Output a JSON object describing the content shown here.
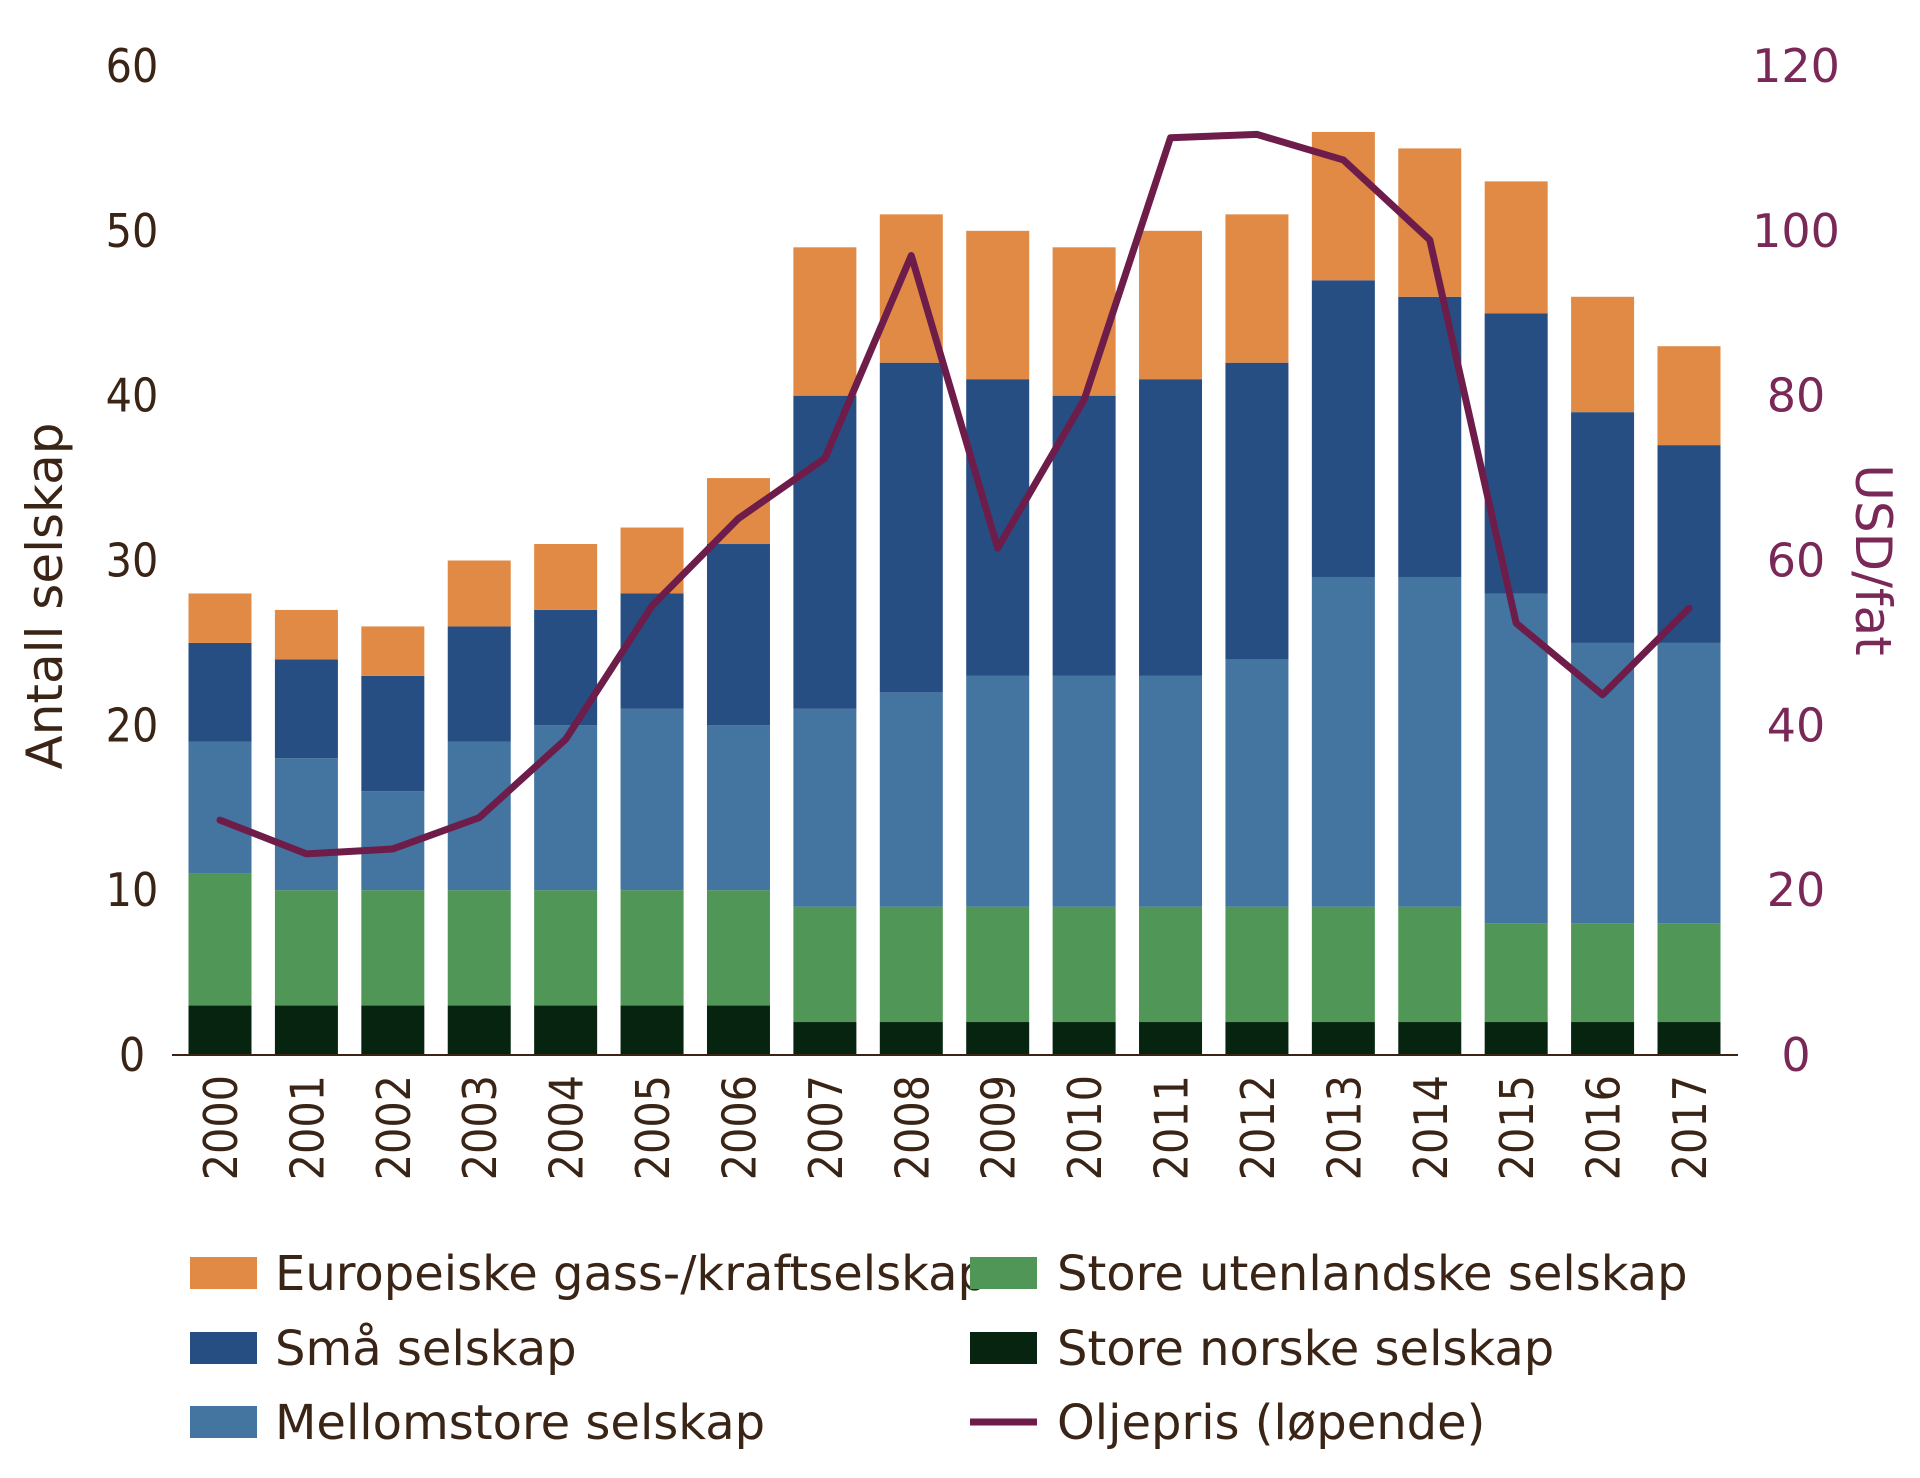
{
  "chart_data": {
    "type": "bar",
    "stacked": true,
    "categories": [
      "2000",
      "2001",
      "2002",
      "2003",
      "2004",
      "2005",
      "2006",
      "2007",
      "2008",
      "2009",
      "2010",
      "2011",
      "2012",
      "2013",
      "2014",
      "2015",
      "2016",
      "2017"
    ],
    "series": [
      {
        "name": "Store norske selskap",
        "color": "#06240f",
        "values": [
          3,
          3,
          3,
          3,
          3,
          3,
          3,
          2,
          2,
          2,
          2,
          2,
          2,
          2,
          2,
          2,
          2,
          2
        ]
      },
      {
        "name": "Store utenlandske selskap",
        "color": "#4f9657",
        "values": [
          8,
          7,
          7,
          7,
          7,
          7,
          7,
          7,
          7,
          7,
          7,
          7,
          7,
          7,
          7,
          6,
          6,
          6
        ]
      },
      {
        "name": "Mellomstore selskap",
        "color": "#4474a0",
        "values": [
          8,
          8,
          6,
          9,
          10,
          11,
          10,
          12,
          13,
          14,
          14,
          14,
          15,
          20,
          20,
          20,
          17,
          17
        ]
      },
      {
        "name": "Små selskap",
        "color": "#264e83",
        "values": [
          6,
          6,
          7,
          7,
          7,
          7,
          11,
          19,
          20,
          18,
          17,
          18,
          18,
          18,
          17,
          17,
          14,
          12
        ]
      },
      {
        "name": "Europeiske gass-/kraftselskap",
        "color": "#e08a45",
        "values": [
          3,
          3,
          3,
          4,
          4,
          4,
          4,
          9,
          9,
          9,
          9,
          9,
          9,
          9,
          9,
          8,
          7,
          6
        ]
      }
    ],
    "line": {
      "name": "Oljepris (løpende)",
      "color": "#6e1d4b",
      "axis": "right",
      "values": [
        28.5,
        24.4,
        25.0,
        28.8,
        38.3,
        54.5,
        65.1,
        72.4,
        97.0,
        61.5,
        79.5,
        111.3,
        111.7,
        108.6,
        98.9,
        52.4,
        43.7,
        54.2
      ]
    },
    "yaxis_left": {
      "label": "Antall selskap",
      "min": 0,
      "max": 60,
      "ticks": [
        "0",
        "10",
        "20",
        "30",
        "40",
        "50",
        "60"
      ]
    },
    "yaxis_right": {
      "label": "USD/fat",
      "min": 0,
      "max": 120,
      "ticks": [
        "0",
        "20",
        "40",
        "60",
        "80",
        "100",
        "120"
      ]
    },
    "legend": {
      "placement": "bottom",
      "left_column": [
        "Europeiske gass-/kraftselskap",
        "Små selskap",
        "Mellomstore selskap"
      ],
      "right_column": [
        "Store utenlandske selskap",
        "Store norske selskap",
        "Oljepris (løpende)"
      ]
    }
  }
}
